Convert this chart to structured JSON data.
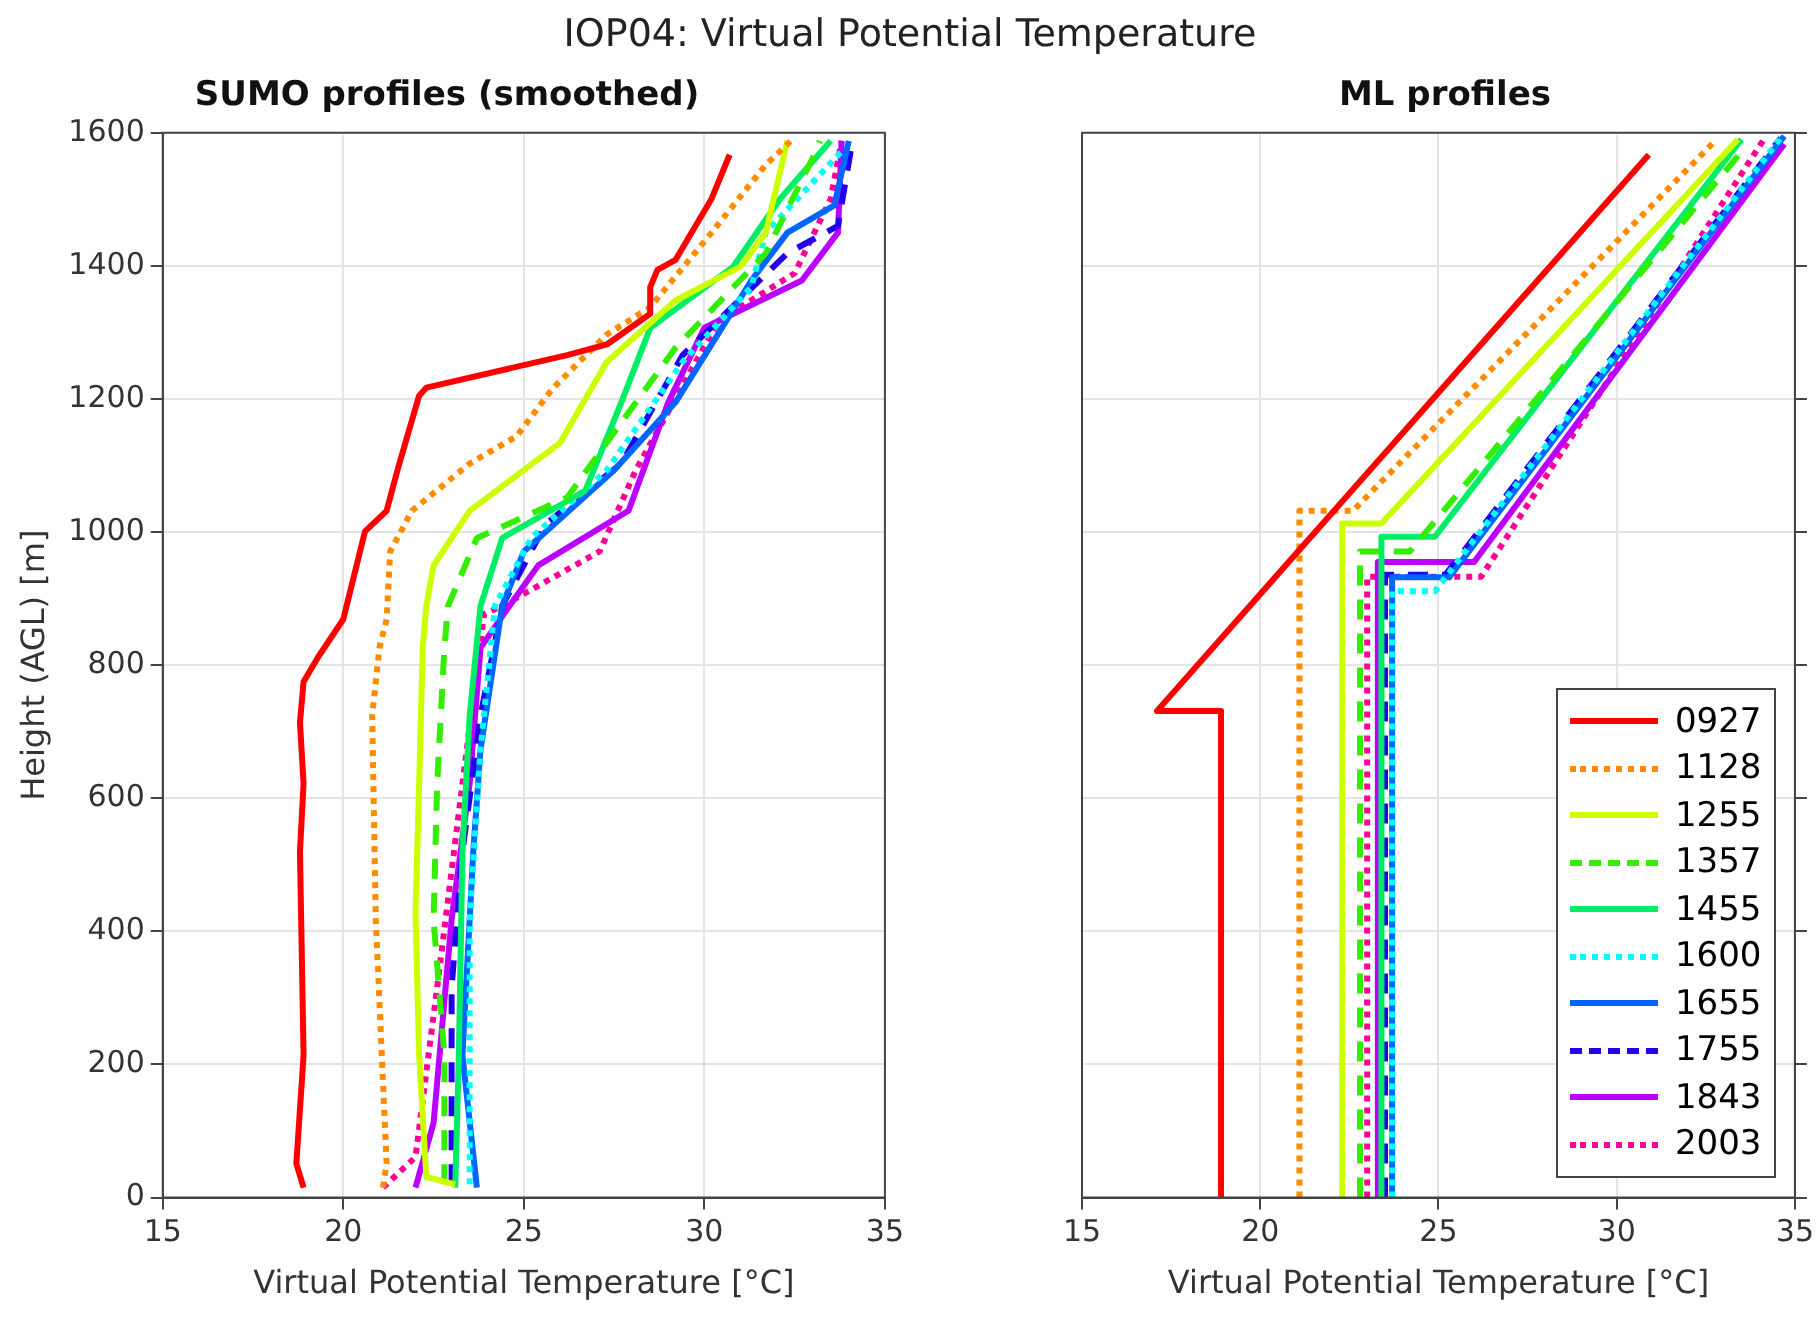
{
  "chart_data": [
    {
      "type": "line",
      "title": "SUMO profiles (smoothed)",
      "annotations": [
        "IOP04: Virtual Potential Temperature"
      ],
      "xlabel": "Virtual Potential Temperature [°C]",
      "ylabel": "Height (AGL) [m]",
      "xlim": [
        15,
        35
      ],
      "xticks": [
        15,
        20,
        25,
        30,
        35
      ],
      "ylim": [
        0,
        1600
      ],
      "yticks": [
        0,
        200,
        400,
        600,
        800,
        1000,
        1200,
        1400,
        1600
      ],
      "grid": true,
      "legend": false,
      "marker": "none",
      "series": [
        {
          "color": "#ff0000",
          "line_style": "solid",
          "x": [
            18.9,
            18.7,
            18.9,
            18.8,
            18.9,
            18.8,
            18.9,
            19.3,
            20.0,
            20.6,
            21.2,
            21.5,
            22.1,
            22.3,
            26.2,
            27.3,
            28.5,
            28.5,
            28.7,
            29.2,
            30.2,
            30.7
          ],
          "values": [
            15,
            51,
            214,
            520,
            622,
            714,
            775,
            812,
            869,
            1001,
            1032,
            1093,
            1205,
            1217,
            1266,
            1282,
            1328,
            1368,
            1394,
            1409,
            1501,
            1567
          ]
        },
        {
          "color": "#ff8c00",
          "line_style": "dotted",
          "x": [
            21.1,
            21.2,
            20.9,
            20.8,
            21.0,
            21.2,
            21.3,
            21.9,
            23.5,
            24.8,
            25.8,
            27.3,
            28.5,
            30.2,
            31.7,
            32.4
          ],
          "values": [
            15,
            51,
            418,
            724,
            826,
            869,
            971,
            1032,
            1103,
            1144,
            1216,
            1297,
            1338,
            1450,
            1552,
            1588
          ]
        },
        {
          "color": "#ccff00",
          "line_style": "solid",
          "x": [
            23.1,
            22.3,
            22.1,
            22.0,
            22.1,
            22.2,
            22.3,
            22.5,
            23.5,
            26.0,
            27.3,
            29.2,
            31.0,
            31.7,
            32.3
          ],
          "values": [
            20,
            31,
            214,
            428,
            622,
            826,
            889,
            950,
            1032,
            1134,
            1256,
            1348,
            1399,
            1450,
            1588
          ]
        },
        {
          "color": "#33ee00",
          "line_style": "dashed",
          "x": [
            22.8,
            22.8,
            22.5,
            22.6,
            22.8,
            22.9,
            23.7,
            26.2,
            29.2,
            31.7,
            33.0,
            33.2
          ],
          "values": [
            20,
            214,
            418,
            622,
            826,
            889,
            991,
            1052,
            1277,
            1419,
            1562,
            1588
          ]
        },
        {
          "color": "#00ee66",
          "line_style": "solid",
          "x": [
            23.1,
            23.2,
            23.3,
            23.5,
            23.8,
            24.4,
            26.7,
            27.7,
            28.5,
            30.8,
            32.1,
            33.5
          ],
          "values": [
            15,
            214,
            520,
            724,
            889,
            991,
            1062,
            1195,
            1307,
            1399,
            1501,
            1588
          ]
        },
        {
          "color": "#00ffff",
          "line_style": "dotted",
          "x": [
            23.5,
            23.5,
            23.8,
            24.2,
            25.2,
            27.3,
            29.4,
            31.3,
            31.7,
            33.8
          ],
          "values": [
            20,
            418,
            673,
            889,
            991,
            1093,
            1256,
            1368,
            1450,
            1572
          ]
        },
        {
          "color": "#0066ff",
          "line_style": "solid",
          "x": [
            23.7,
            23.3,
            23.6,
            23.8,
            24.4,
            25.0,
            27.5,
            29.2,
            31.3,
            32.3,
            33.6,
            34.0
          ],
          "values": [
            15,
            214,
            520,
            673,
            889,
            971,
            1093,
            1195,
            1378,
            1450,
            1491,
            1588
          ]
        },
        {
          "color": "#2200ee",
          "line_style": "dashed",
          "x": [
            23.0,
            23.0,
            23.3,
            23.8,
            24.4,
            25.6,
            27.7,
            29.4,
            32.3,
            33.7,
            34.1
          ],
          "values": [
            20,
            316,
            520,
            724,
            889,
            1012,
            1103,
            1266,
            1419,
            1460,
            1588
          ]
        },
        {
          "color": "#bb00ff",
          "line_style": "solid",
          "x": [
            22.0,
            22.5,
            23.0,
            23.5,
            23.8,
            24.6,
            25.4,
            27.9,
            29.0,
            30.0,
            32.7,
            33.7,
            33.8
          ],
          "values": [
            15,
            112,
            418,
            622,
            826,
            889,
            950,
            1032,
            1195,
            1307,
            1378,
            1450,
            1588
          ]
        },
        {
          "color": "#ff0099",
          "line_style": "dotted",
          "x": [
            21.1,
            22.0,
            22.6,
            23.3,
            23.9,
            24.4,
            27.1,
            28.1,
            30.4,
            32.5,
            33.5,
            33.8
          ],
          "values": [
            15,
            61,
            316,
            622,
            877,
            889,
            971,
            1093,
            1318,
            1389,
            1501,
            1588
          ]
        }
      ]
    },
    {
      "type": "line",
      "title": "ML profiles",
      "xlabel": "Virtual Potential Temperature [°C]",
      "xlim": [
        15,
        35
      ],
      "xticks": [
        15,
        20,
        25,
        30,
        35
      ],
      "ylim": [
        0,
        1600
      ],
      "yticks": [
        0,
        200,
        400,
        600,
        800,
        1000,
        1200,
        1400,
        1600
      ],
      "tick_labels": "x",
      "grid": true,
      "legend": "bottom right",
      "marker": "none",
      "series": [
        {
          "name": "0927",
          "color": "#ff0000",
          "line_style": "solid",
          "x": [
            18.9,
            18.9,
            17.1,
            30.9
          ],
          "values": [
            0,
            731,
            731,
            1567
          ]
        },
        {
          "name": "1128",
          "color": "#ff8c00",
          "line_style": "dotted",
          "x": [
            21.1,
            21.1,
            22.6,
            32.8
          ],
          "values": [
            0,
            1032,
            1032,
            1590
          ]
        },
        {
          "name": "1255",
          "color": "#ccff00",
          "line_style": "solid",
          "x": [
            22.3,
            22.3,
            23.4,
            33.4
          ],
          "values": [
            0,
            1013,
            1013,
            1590
          ]
        },
        {
          "name": "1357",
          "color": "#33ee00",
          "line_style": "dashed",
          "x": [
            22.8,
            22.8,
            24.2,
            33.6
          ],
          "values": [
            0,
            971,
            971,
            1578
          ]
        },
        {
          "name": "1455",
          "color": "#00ee66",
          "line_style": "solid",
          "x": [
            23.4,
            23.4,
            24.9,
            33.5
          ],
          "values": [
            0,
            993,
            993,
            1590
          ]
        },
        {
          "name": "1600",
          "color": "#00ffff",
          "line_style": "dotted",
          "x": [
            23.7,
            23.7,
            24.9,
            34.6
          ],
          "values": [
            0,
            911,
            911,
            1592
          ]
        },
        {
          "name": "1655",
          "color": "#0066ff",
          "line_style": "solid",
          "x": [
            23.7,
            23.7,
            25.3,
            34.7
          ],
          "values": [
            0,
            932,
            932,
            1595
          ]
        },
        {
          "name": "1755",
          "color": "#2200ee",
          "line_style": "dashed",
          "x": [
            23.5,
            23.5,
            25.2,
            34.6
          ],
          "values": [
            0,
            936,
            936,
            1592
          ]
        },
        {
          "name": "1843",
          "color": "#bb00ff",
          "line_style": "solid",
          "x": [
            23.3,
            23.3,
            26.0,
            34.7
          ],
          "values": [
            0,
            955,
            955,
            1583
          ]
        },
        {
          "name": "2003",
          "color": "#ff0099",
          "line_style": "dotted",
          "x": [
            23.0,
            23.0,
            26.2,
            34.1
          ],
          "values": [
            0,
            933,
            933,
            1588
          ]
        }
      ]
    }
  ]
}
